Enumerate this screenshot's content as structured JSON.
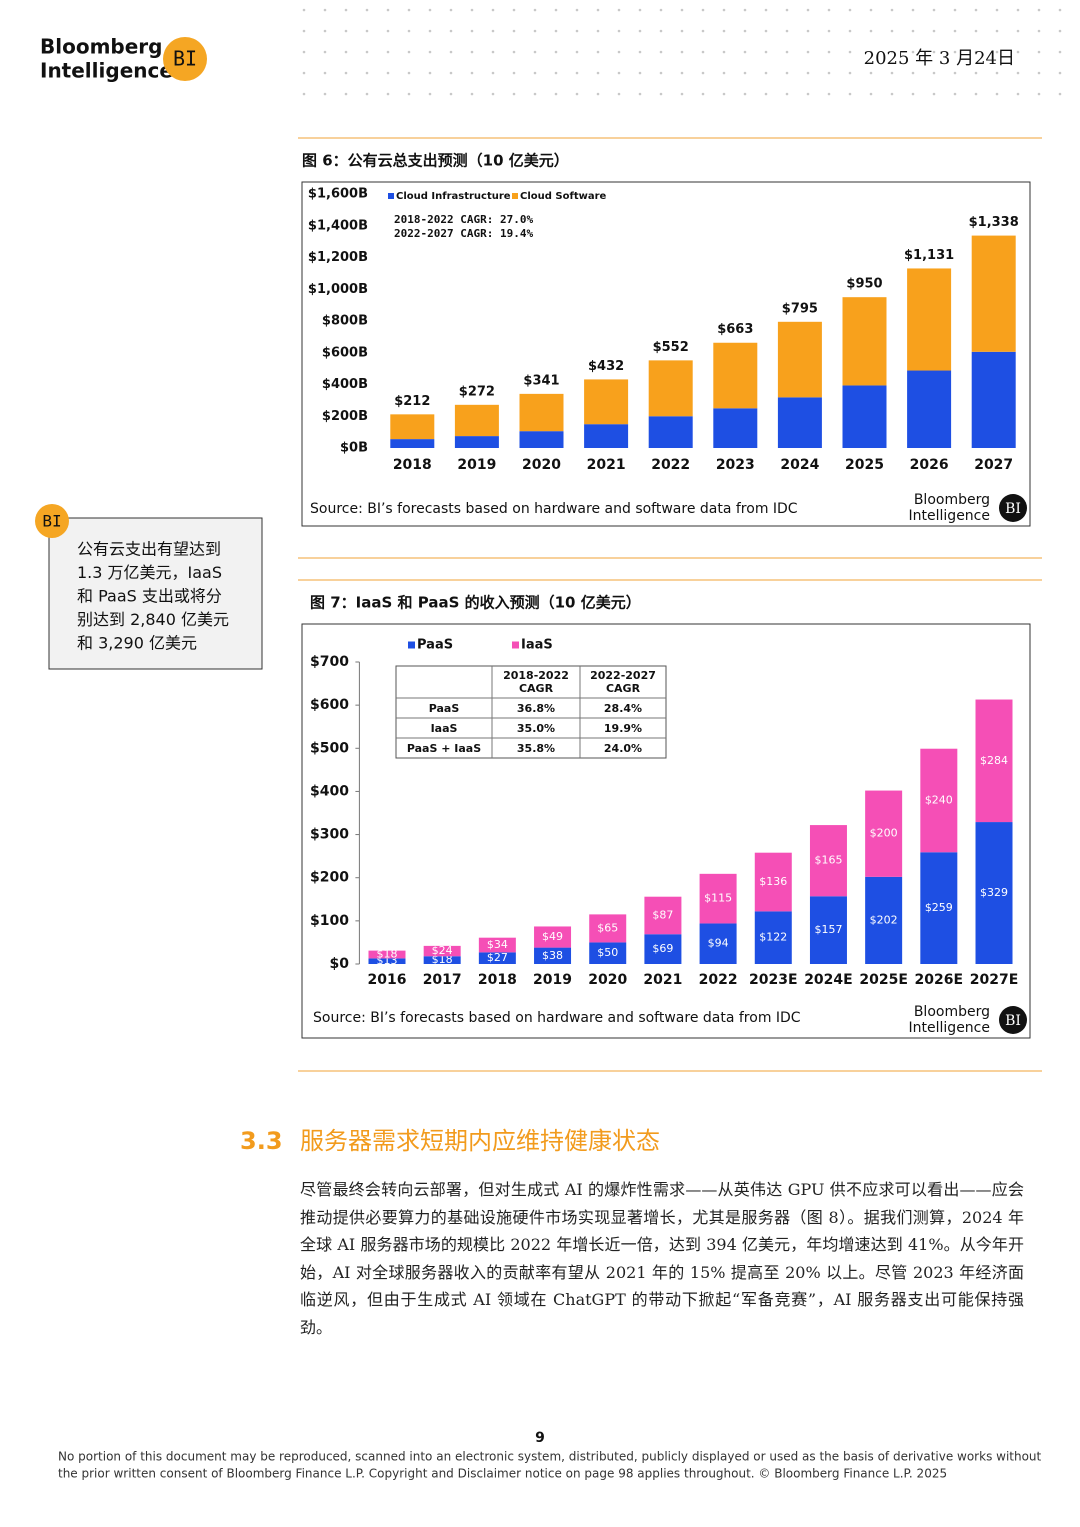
{
  "header": {
    "logo_line1": "Bloomberg",
    "logo_line2": "Intelligence",
    "logo_badge": "BI",
    "date": "2025 年 3 月24日"
  },
  "chart_data": [
    {
      "type": "bar",
      "stacked": true,
      "title": "图 6：公有云总支出预测（10 亿美元）",
      "categories": [
        "2018",
        "2019",
        "2020",
        "2021",
        "2022",
        "2023",
        "2024",
        "2025",
        "2026",
        "2027"
      ],
      "series": [
        {
          "name": "Cloud Infrastructure",
          "color": "#1e4fe3",
          "values": [
            56,
            75,
            106,
            150,
            200,
            250,
            319,
            394,
            488,
            606
          ]
        },
        {
          "name": "Cloud Software",
          "color": "#f8a11c",
          "values": [
            156,
            197,
            235,
            282,
            352,
            413,
            476,
            556,
            643,
            732
          ]
        }
      ],
      "totals": [
        212,
        272,
        341,
        432,
        552,
        663,
        795,
        950,
        1131,
        1338
      ],
      "total_labels": [
        "$212",
        "$272",
        "$341",
        "$432",
        "$552",
        "$663",
        "$795",
        "$950",
        "$1,131",
        "$1,338"
      ],
      "annotations": [
        "2018-2022 CAGR: 27.0%",
        "2022-2027 CAGR: 19.4%"
      ],
      "ylim": [
        0,
        1600
      ],
      "yticks": [
        {
          "value": 0,
          "label": "$0B"
        },
        {
          "value": 200,
          "label": "$200B"
        },
        {
          "value": 400,
          "label": "$400B"
        },
        {
          "value": 600,
          "label": "$600B"
        },
        {
          "value": 800,
          "label": "$800B"
        },
        {
          "value": 1000,
          "label": "$1,000B"
        },
        {
          "value": 1200,
          "label": "$1,200B"
        },
        {
          "value": 1400,
          "label": "$1,400B"
        },
        {
          "value": 1600,
          "label": "$1,600B"
        }
      ],
      "grid": false,
      "source": "Source: BI’s forecasts based on hardware and software data from IDC",
      "brand": {
        "line1": "Bloomberg",
        "line2": "Intelligence",
        "badge": "BI"
      }
    },
    {
      "type": "bar",
      "stacked": true,
      "title": "图 7：IaaS 和 PaaS 的收入预测（10 亿美元）",
      "categories": [
        "2016",
        "2017",
        "2018",
        "2019",
        "2020",
        "2021",
        "2022",
        "2023E",
        "2024E",
        "2025E",
        "2026E",
        "2027E"
      ],
      "series": [
        {
          "name": "PaaS",
          "color": "#1e4fe3",
          "values": [
            13,
            18,
            27,
            38,
            50,
            69,
            94,
            122,
            157,
            202,
            259,
            329
          ],
          "value_labels": [
            "$13",
            "$18",
            "$27",
            "$38",
            "$50",
            "$69",
            "$94",
            "$122",
            "$157",
            "$202",
            "$259",
            "$329"
          ]
        },
        {
          "name": "IaaS",
          "color": "#f54fb6",
          "values": [
            18,
            24,
            34,
            49,
            65,
            87,
            115,
            136,
            165,
            200,
            240,
            284
          ],
          "value_labels": [
            "$18",
            "$24",
            "$34",
            "$49",
            "$65",
            "$87",
            "$115",
            "$136",
            "$165",
            "$200",
            "$240",
            "$284"
          ]
        }
      ],
      "ylim": [
        0,
        700
      ],
      "yticks": [
        {
          "value": 0,
          "label": "$0"
        },
        {
          "value": 100,
          "label": "$100"
        },
        {
          "value": 200,
          "label": "$200"
        },
        {
          "value": 300,
          "label": "$300"
        },
        {
          "value": 400,
          "label": "$400"
        },
        {
          "value": 500,
          "label": "$500"
        },
        {
          "value": 600,
          "label": "$600"
        },
        {
          "value": 700,
          "label": "$700"
        }
      ],
      "grid": false,
      "table": {
        "columns": [
          [
            "2018-2022",
            "CAGR"
          ],
          [
            "2022-2027",
            "CAGR"
          ]
        ],
        "rows": [
          [
            "PaaS",
            "36.8%",
            "28.4%"
          ],
          [
            "IaaS",
            "35.0%",
            "19.9%"
          ],
          [
            "PaaS + IaaS",
            "35.8%",
            "24.0%"
          ]
        ]
      },
      "source": "Source: BI’s forecasts based on hardware and software data from IDC",
      "brand": {
        "line1": "Bloomberg",
        "line2": "Intelligence",
        "badge": "BI"
      }
    }
  ],
  "sidebar": {
    "badge": "BI",
    "lines": [
      "公有云支出有望达到",
      "1.3 万亿美元，IaaS",
      "和 PaaS 支出或将分",
      "别达到 2,840 亿美元",
      "和 3,290 亿美元"
    ]
  },
  "section": {
    "number": "3.3",
    "title": "服务器需求短期内应维持健康状态",
    "paragraph": "尽管最终会转向云部署，但对生成式 AI 的爆炸性需求——从英伟达 GPU 供不应求可以看出——应会推动提供必要算力的基础设施硬件市场实现显著增长，尤其是服务器（图 8）。据我们测算，2024 年全球 AI 服务器市场的规模比 2022 年增长近一倍，达到 394 亿美元，年均增速达到 41%。从今年开始，AI 对全球服务器收入的贡献率有望从 2021 年的 15% 提高至 20% 以上。尽管 2023 年经济面临逆风，但由于生成式 AI 领域在 ChatGPT 的带动下掀起“军备竞赛”，AI 服务器支出可能保持强劲。"
  },
  "footer": {
    "page": "9",
    "disclaimer": [
      "No portion of this document may be reproduced, scanned into an electronic system, distributed, publicly displayed or used as the basis of derivative works without",
      "the prior written consent of Bloomberg Finance L.P. Copyright and Disclaimer notice on page 98 applies throughout. © Bloomberg Finance L.P. 2025"
    ]
  }
}
